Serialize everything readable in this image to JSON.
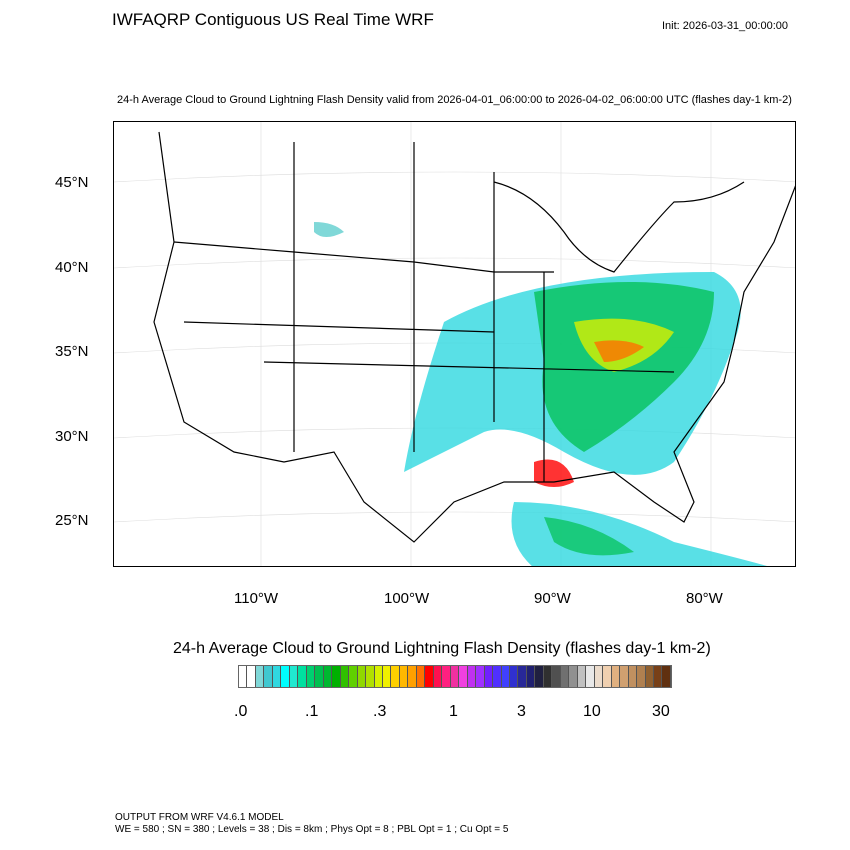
{
  "header": {
    "title": "IWFAQRP Contiguous US Real Time WRF",
    "init": "Init: 2026-03-31_00:00:00",
    "subtitle": "24-h Average Cloud to Ground Lightning Flash Density valid from 2026-04-01_06:00:00 to 2026-04-02_06:00:00 UTC   (flashes day-1 km-2)"
  },
  "map": {
    "lat_labels": [
      "45°N",
      "40°N",
      "35°N",
      "30°N",
      "25°N"
    ],
    "lon_labels": [
      "110°W",
      "100°W",
      "90°W",
      "80°W"
    ]
  },
  "colorbar": {
    "title": "24-h Average Cloud to Ground Lightning Flash Density  (flashes day-1 km-2)",
    "tick_labels": [
      ".0",
      ".1",
      ".3",
      "1",
      "3",
      "10",
      "30"
    ],
    "colors": [
      "#ffffff",
      "#ffffff",
      "#80d8d8",
      "#40c8d0",
      "#30d8e0",
      "#00ffff",
      "#20e8d0",
      "#00e0a0",
      "#00d070",
      "#00c050",
      "#00b830",
      "#00b000",
      "#30c000",
      "#60d000",
      "#90d800",
      "#b0e000",
      "#d8f000",
      "#f0f000",
      "#ffd000",
      "#ffb800",
      "#ffa000",
      "#ff7000",
      "#ff0000",
      "#ff1050",
      "#ff2080",
      "#f030a0",
      "#f040e0",
      "#c030f0",
      "#a030ff",
      "#7020ff",
      "#5030ff",
      "#4040ff",
      "#3030d0",
      "#282898",
      "#202070",
      "#202040",
      "#303030",
      "#505050",
      "#707070",
      "#909090",
      "#c0c0c0",
      "#e8e8e8",
      "#ecdccc",
      "#f0d0b0",
      "#e0b080",
      "#d0a070",
      "#c09060",
      "#b08050",
      "#906030",
      "#784018",
      "#603010"
    ]
  },
  "footer": {
    "line1": "OUTPUT FROM WRF V4.6.1 MODEL",
    "line2": "WE = 580 ; SN = 380 ; Levels = 38 ; Dis = 8km ; Phys Opt = 8 ; PBL Opt = 1 ; Cu Opt = 5"
  }
}
